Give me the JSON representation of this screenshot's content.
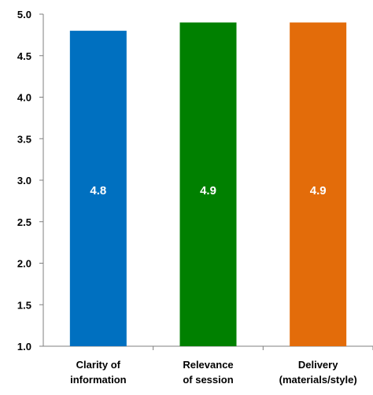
{
  "chart_data": {
    "type": "bar",
    "categories": [
      [
        "Clarity of",
        "information"
      ],
      [
        "Relevance",
        "of session"
      ],
      [
        "Delivery",
        "(materials/style)"
      ]
    ],
    "values": [
      4.8,
      4.9,
      4.9
    ],
    "data_labels": [
      "4.8",
      "4.9",
      "4.9"
    ],
    "colors": [
      "#0070C0",
      "#008000",
      "#E36C0A"
    ],
    "ylim": [
      1.0,
      5.0
    ],
    "yticks": [
      "1.0",
      "1.5",
      "2.0",
      "2.5",
      "3.0",
      "3.5",
      "4.0",
      "4.5",
      "5.0"
    ],
    "title": "",
    "xlabel": "",
    "ylabel": "",
    "grid": false,
    "legend": "none"
  }
}
